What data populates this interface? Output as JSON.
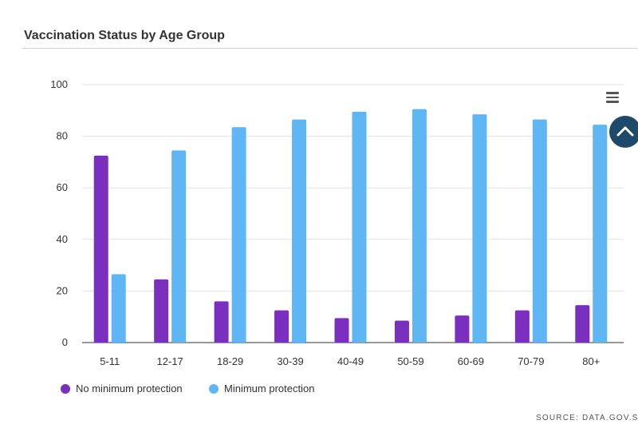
{
  "header": {
    "title": "Vaccination Status by Age Group"
  },
  "legend": [
    {
      "label": "No minimum protection",
      "color": "#7b2fbe"
    },
    {
      "label": "Minimum protection",
      "color": "#5fb6f5"
    }
  ],
  "footer": {
    "source": "SOURCE: DATA.GOV.SG"
  },
  "icons": {
    "menu": "hamburger-menu-icon",
    "scroll": "chevron-up-icon"
  },
  "chart_data": {
    "type": "bar",
    "categories": [
      "5-11",
      "12-17",
      "18-29",
      "30-39",
      "40-49",
      "50-59",
      "60-69",
      "70-79",
      "80+"
    ],
    "series": [
      {
        "name": "No minimum protection",
        "values": [
          72.5,
          24.5,
          16,
          12.5,
          9.5,
          8.5,
          10.5,
          12.5,
          14.5
        ]
      },
      {
        "name": "Minimum protection",
        "values": [
          26.5,
          74.5,
          83.5,
          86.5,
          89.5,
          90.5,
          88.5,
          86.5,
          84.5
        ]
      }
    ],
    "ylim": [
      0,
      100
    ],
    "yticks": [
      0,
      20,
      40,
      60,
      80,
      100
    ],
    "grid": true,
    "xlabel": "",
    "ylabel": "",
    "legend_position": "bottom-left"
  }
}
